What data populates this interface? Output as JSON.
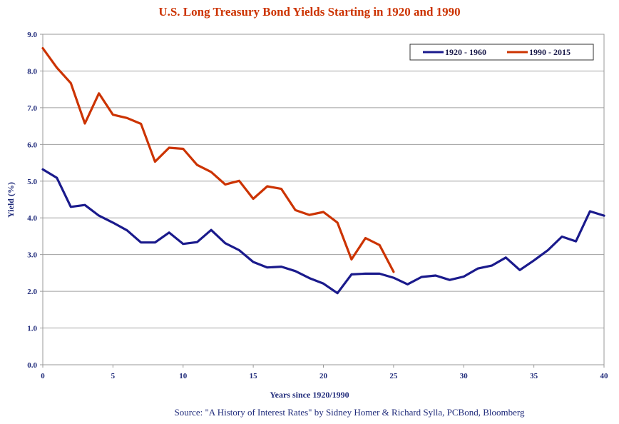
{
  "chart_data": {
    "type": "line",
    "title": "U.S. Long Treasury Bond Yields Starting in 1920 and 1990",
    "xlabel": "Years since 1920/1990",
    "ylabel": "Yield (%)",
    "source": "Source: \"A History of Interest Rates\" by Sidney Homer & Richard Sylla, PCBond, Bloomberg",
    "xlim": [
      0,
      40
    ],
    "ylim": [
      0,
      9
    ],
    "x_ticks": [
      "0",
      "5",
      "10",
      "15",
      "20",
      "25",
      "30",
      "35",
      "40"
    ],
    "x_tick_values": [
      0,
      5,
      10,
      15,
      20,
      25,
      30,
      35,
      40
    ],
    "y_ticks": [
      "0.0",
      "1.0",
      "2.0",
      "3.0",
      "4.0",
      "5.0",
      "6.0",
      "7.0",
      "8.0",
      "9.0"
    ],
    "y_tick_values": [
      0,
      1,
      2,
      3,
      4,
      5,
      6,
      7,
      8,
      9
    ],
    "grid": "horizontal",
    "legend_position": "top-right",
    "colors": {
      "title": "#cc3300",
      "axis": "#1f2a7a",
      "grid": "#a0a0a0"
    },
    "series": [
      {
        "name": "1920 - 1960",
        "color": "#1a1a8c",
        "x": [
          0,
          1,
          2,
          3,
          4,
          5,
          6,
          7,
          8,
          9,
          10,
          11,
          12,
          13,
          14,
          15,
          16,
          17,
          18,
          19,
          20,
          21,
          22,
          23,
          24,
          25,
          26,
          27,
          28,
          29,
          30,
          31,
          32,
          33,
          34,
          35,
          36,
          37,
          38,
          39,
          40
        ],
        "values": [
          5.32,
          5.09,
          4.3,
          4.35,
          4.06,
          3.87,
          3.66,
          3.33,
          3.33,
          3.6,
          3.29,
          3.34,
          3.67,
          3.31,
          3.12,
          2.8,
          2.65,
          2.67,
          2.55,
          2.36,
          2.21,
          1.95,
          2.46,
          2.48,
          2.48,
          2.37,
          2.19,
          2.39,
          2.43,
          2.31,
          2.4,
          2.62,
          2.7,
          2.92,
          2.58,
          2.84,
          3.12,
          3.49,
          3.36,
          4.18,
          4.06
        ]
      },
      {
        "name": "1990 - 2015",
        "color": "#cc3300",
        "x": [
          0,
          1,
          2,
          3,
          4,
          5,
          6,
          7,
          8,
          9,
          10,
          11,
          12,
          13,
          14,
          15,
          16,
          17,
          18,
          19,
          20,
          21,
          22,
          23,
          24,
          25
        ],
        "values": [
          8.62,
          8.09,
          7.67,
          6.57,
          7.39,
          6.81,
          6.72,
          6.56,
          5.53,
          5.91,
          5.88,
          5.44,
          5.25,
          4.91,
          5.01,
          4.52,
          4.86,
          4.79,
          4.21,
          4.08,
          4.16,
          3.87,
          2.87,
          3.45,
          3.26,
          2.53
        ]
      }
    ]
  }
}
